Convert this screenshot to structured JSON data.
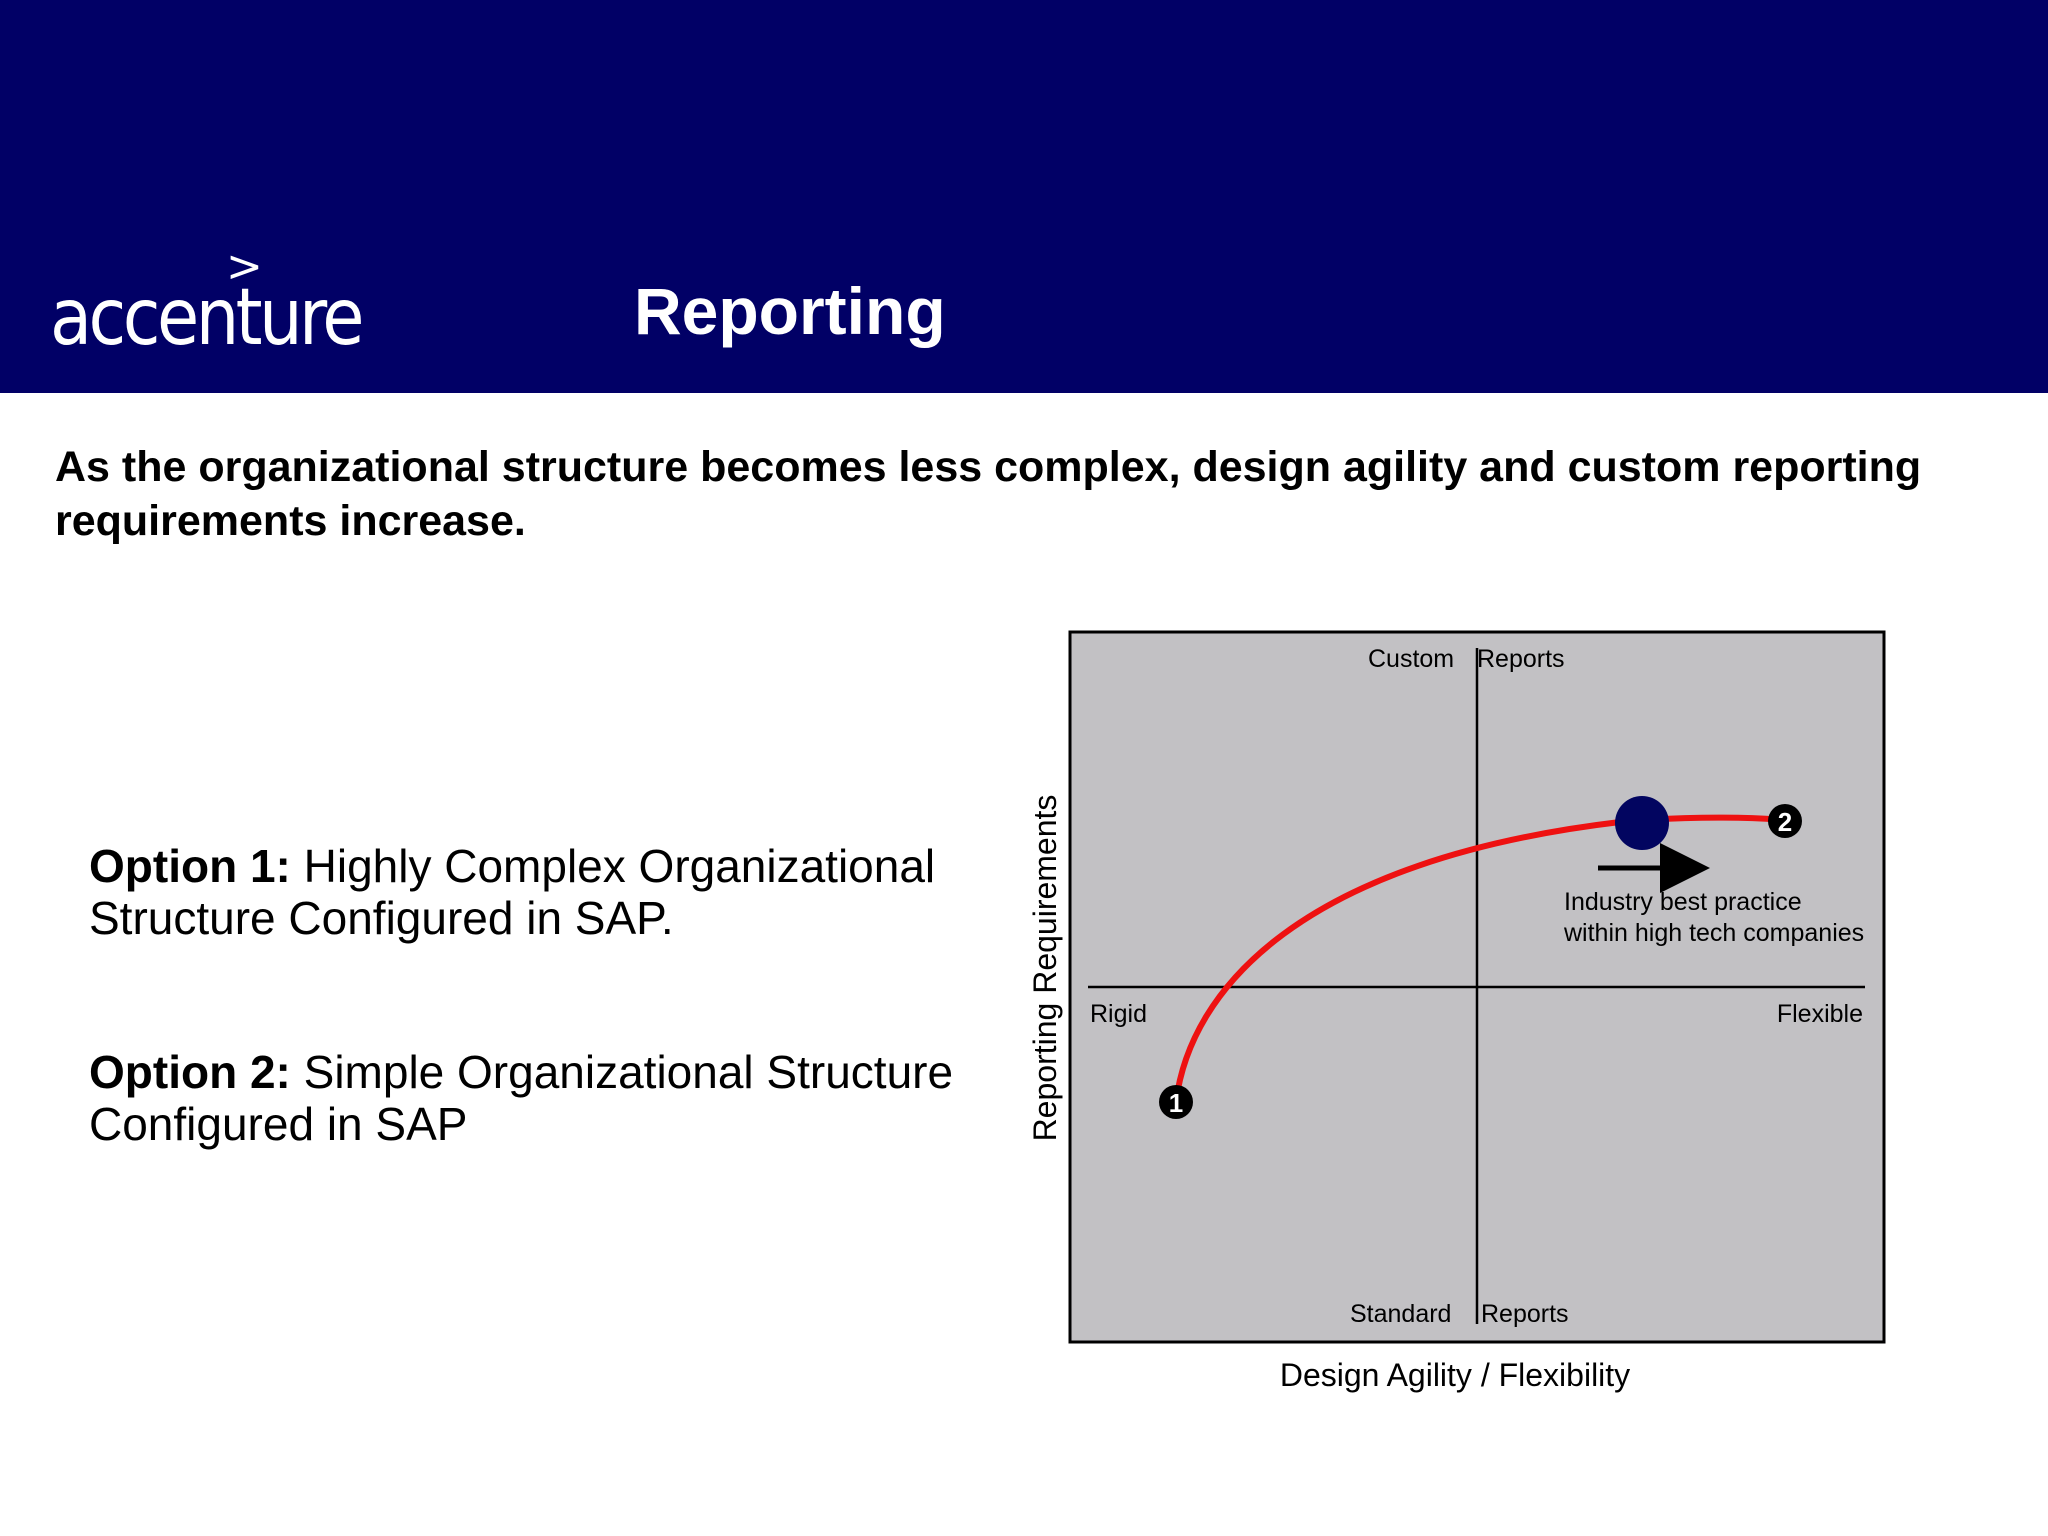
{
  "header": {
    "logo_text": "accenture",
    "logo_mark": ">",
    "title": "Reporting"
  },
  "headline": "As the organizational structure becomes less complex, design agility and custom reporting requirements increase.",
  "options": [
    {
      "label": "Option 1:",
      "text": "Highly Complex Organizational Structure Configured in SAP."
    },
    {
      "label": "Option 2:",
      "text": "Simple Organizational Structure Configured in SAP"
    }
  ],
  "diagram": {
    "top_left": "Custom",
    "top_right": "Reports",
    "bottom_left": "Standard",
    "bottom_right": "Reports",
    "left": "Rigid",
    "right": "Flexible",
    "y_axis": "Reporting Requirements",
    "x_axis": "Design Agility / Flexibility",
    "annotation_line1": "Industry best practice",
    "annotation_line2": "within high tech companies",
    "marker1": "1",
    "marker2": "2",
    "colors": {
      "header": "#010066",
      "panel": "#c2c1c4",
      "curve": "#ee1111",
      "dot": "#020560"
    }
  }
}
